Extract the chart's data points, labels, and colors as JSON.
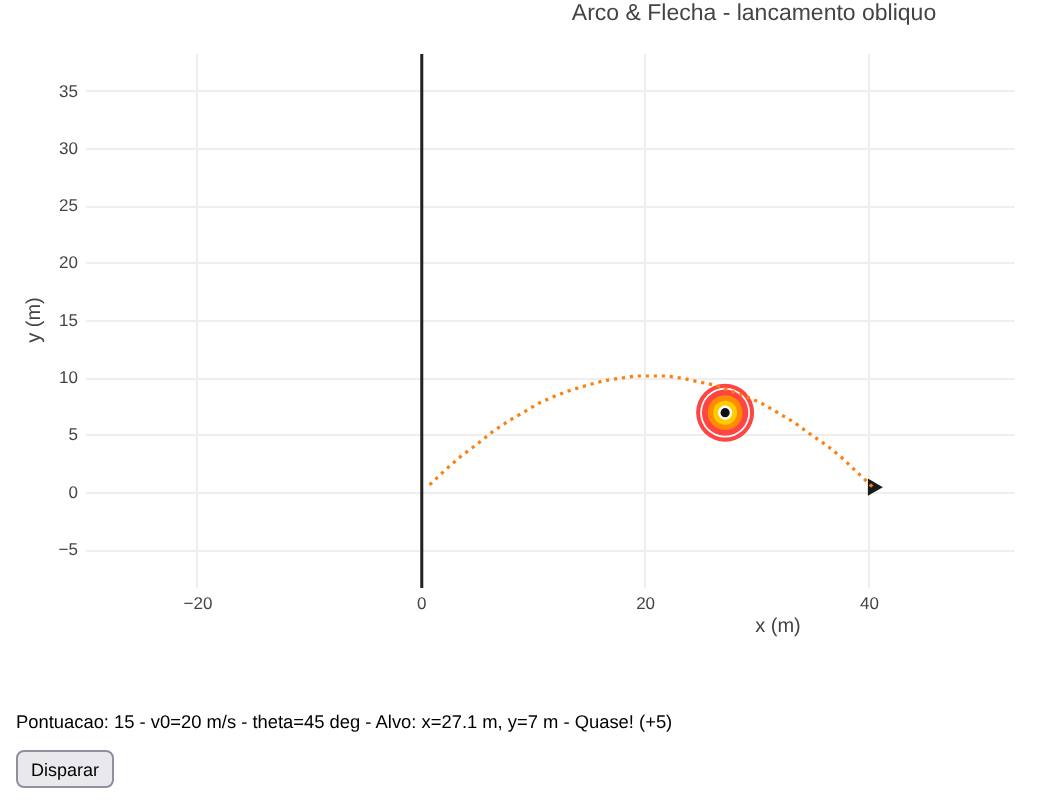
{
  "chart_data": {
    "type": "line",
    "title": "Arco & Flecha - lancamento obliquo",
    "xlabel": "x (m)",
    "ylabel": "y (m)",
    "xlim": [
      -30,
      53
    ],
    "xticks": [
      {
        "value": -20,
        "label": "−20"
      },
      0,
      20,
      40
    ],
    "ylim": [
      -8.3,
      38.3
    ],
    "yticks": [
      {
        "value": -5,
        "label": "−5"
      },
      0,
      5,
      10,
      15,
      20,
      25,
      30,
      35
    ],
    "grid": true,
    "ref_lines": [
      {
        "axis": "x",
        "value": 0,
        "color": "#222222"
      }
    ],
    "series": [
      {
        "color": "#ff7f0e",
        "line_style": "dotted",
        "x": [
          0.7,
          2.1,
          3.5,
          5.0,
          6.4,
          7.8,
          9.2,
          10.6,
          12.0,
          13.4,
          14.8,
          16.3,
          17.7,
          19.1,
          20.5,
          21.9,
          23.3,
          24.7,
          26.2,
          27.6,
          29.0,
          30.4,
          31.8,
          33.2,
          34.6,
          36.1,
          37.5,
          38.9,
          40.3
        ],
        "values": [
          0.7,
          2.0,
          3.2,
          4.3,
          5.4,
          6.3,
          7.1,
          7.9,
          8.5,
          9.0,
          9.4,
          9.8,
          10.0,
          10.2,
          10.2,
          10.2,
          10.0,
          9.7,
          9.4,
          8.9,
          8.4,
          7.8,
          7.0,
          6.2,
          5.2,
          4.2,
          3.1,
          1.8,
          0.5
        ]
      },
      {
        "type": "bubble",
        "x": [
          27.1,
          27.1,
          27.1,
          27.1,
          27.1,
          27.1,
          27.1
        ],
        "values": [
          7,
          7,
          7,
          7,
          7,
          7,
          7
        ],
        "sizes": [
          1,
          0.74,
          0.64,
          0.36,
          0.17,
          0.06,
          0.025
        ],
        "colors": [
          "#ff4444",
          "#ffffff",
          "#ff4444",
          "#ff8c00",
          "#ffcc00",
          "#ffffff",
          "#111111"
        ]
      },
      {
        "type": "scatter",
        "marker": "triangle",
        "color": "#1a1a1a",
        "x": [
          40.3
        ],
        "values": [
          0.5
        ]
      }
    ],
    "annotations": [
      "Pontuacao: 15 - v0=20 m/s - theta=45 deg - Alvo: x=27.1 m, y=7 m - Quase! (+5)",
      "Disparar"
    ]
  }
}
